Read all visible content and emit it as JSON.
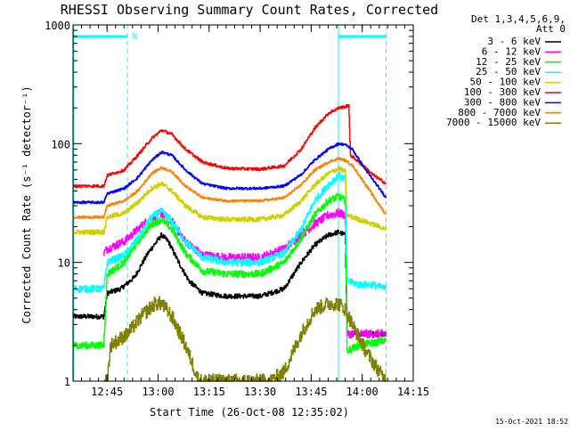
{
  "chart_data": {
    "type": "line",
    "title": "RHESSI Observing Summary Count Rates, Corrected",
    "xlabel": "Start Time (26-Oct-08 12:35:02)",
    "ylabel": "Corrected Count Rate (s⁻¹ detector⁻¹)",
    "yscale": "log",
    "ylim": [
      1,
      1000
    ],
    "xlim_minutes": [
      0,
      100
    ],
    "x_ticks": [
      {
        "label": "12:45",
        "t": 10
      },
      {
        "label": "13:00",
        "t": 25
      },
      {
        "label": "13:15",
        "t": 40
      },
      {
        "label": "13:30",
        "t": 55
      },
      {
        "label": "13:45",
        "t": 70
      },
      {
        "label": "14:00",
        "t": 85
      },
      {
        "label": "14:15",
        "t": 100
      }
    ],
    "y_ticks": [
      {
        "label": "1",
        "v": 1
      },
      {
        "label": "10",
        "v": 10
      },
      {
        "label": "100",
        "v": 100
      },
      {
        "label": "1000",
        "v": 1000
      }
    ],
    "legend_header": [
      "Det 1,3,4,5,6,9,",
      "Att 0"
    ],
    "legend_position": "top-right",
    "annotations": {
      "night_marker": "N",
      "night_bars": [
        [
          0,
          16
        ],
        [
          78,
          92
        ]
      ],
      "dashed_lines_t": [
        16,
        92
      ],
      "solid_line_t": 78
    },
    "footer_stamp": "15-Oct-2021 18:52",
    "series": [
      {
        "name": "3 - 6 keV",
        "color": "#000000",
        "amp": 0.02,
        "points": [
          [
            0,
            3.5
          ],
          [
            4,
            3.5
          ],
          [
            9,
            3.5
          ],
          [
            10,
            5.5
          ],
          [
            14,
            6
          ],
          [
            18,
            7.5
          ],
          [
            22,
            12
          ],
          [
            26,
            17
          ],
          [
            28,
            15
          ],
          [
            31,
            10
          ],
          [
            34,
            7
          ],
          [
            38,
            5.5
          ],
          [
            45,
            5.2
          ],
          [
            55,
            5.2
          ],
          [
            62,
            6
          ],
          [
            67,
            10
          ],
          [
            71,
            14
          ],
          [
            75,
            17
          ],
          [
            78,
            18
          ],
          [
            80,
            17
          ],
          [
            80.5,
            2.5
          ],
          [
            84,
            2.5
          ],
          [
            92,
            2.5
          ]
        ]
      },
      {
        "name": "6 - 12 keV",
        "color": "#ff00ff",
        "amp": 0.035,
        "points": [
          [
            9,
            12
          ],
          [
            10,
            13
          ],
          [
            15,
            15
          ],
          [
            19,
            19
          ],
          [
            23,
            24
          ],
          [
            26,
            26
          ],
          [
            29,
            22
          ],
          [
            33,
            15
          ],
          [
            38,
            11.5
          ],
          [
            45,
            11
          ],
          [
            55,
            11
          ],
          [
            62,
            13
          ],
          [
            67,
            17
          ],
          [
            71,
            21
          ],
          [
            75,
            25
          ],
          [
            78,
            26
          ],
          [
            80,
            25
          ],
          [
            80.5,
            2.5
          ],
          [
            84,
            2.5
          ],
          [
            92,
            2.5
          ]
        ]
      },
      {
        "name": "12 - 25 keV",
        "color": "#00ff00",
        "amp": 0.03,
        "points": [
          [
            0,
            2
          ],
          [
            9,
            2
          ],
          [
            10,
            8
          ],
          [
            15,
            10
          ],
          [
            19,
            15
          ],
          [
            23,
            21
          ],
          [
            26,
            23
          ],
          [
            29,
            19
          ],
          [
            33,
            12
          ],
          [
            38,
            8.5
          ],
          [
            45,
            8
          ],
          [
            55,
            8
          ],
          [
            62,
            10
          ],
          [
            67,
            16
          ],
          [
            71,
            25
          ],
          [
            75,
            33
          ],
          [
            78,
            36
          ],
          [
            80,
            33
          ],
          [
            80.5,
            1.8
          ],
          [
            84,
            2
          ],
          [
            92,
            2.2
          ]
        ]
      },
      {
        "name": "25 - 50 keV",
        "color": "#00ffff",
        "amp": 0.03,
        "points": [
          [
            0,
            6
          ],
          [
            9,
            6
          ],
          [
            10,
            10
          ],
          [
            15,
            11.5
          ],
          [
            19,
            16
          ],
          [
            23,
            24
          ],
          [
            26,
            27
          ],
          [
            29,
            22
          ],
          [
            33,
            15
          ],
          [
            38,
            11
          ],
          [
            45,
            10
          ],
          [
            55,
            10
          ],
          [
            62,
            12
          ],
          [
            67,
            19
          ],
          [
            71,
            33
          ],
          [
            75,
            45
          ],
          [
            78,
            54
          ],
          [
            80,
            50
          ],
          [
            80.5,
            7
          ],
          [
            84,
            6.5
          ],
          [
            88,
            6.5
          ],
          [
            92,
            6
          ]
        ]
      },
      {
        "name": "50 - 100 keV",
        "color": "#d0d000",
        "amp": 0.02,
        "points": [
          [
            0,
            18
          ],
          [
            9,
            18
          ],
          [
            10,
            24
          ],
          [
            15,
            26
          ],
          [
            19,
            32
          ],
          [
            23,
            42
          ],
          [
            26,
            46
          ],
          [
            29,
            40
          ],
          [
            33,
            30
          ],
          [
            38,
            24
          ],
          [
            45,
            23
          ],
          [
            55,
            23
          ],
          [
            62,
            25
          ],
          [
            67,
            33
          ],
          [
            71,
            45
          ],
          [
            75,
            56
          ],
          [
            78,
            62
          ],
          [
            80,
            58
          ],
          [
            80.5,
            25
          ],
          [
            84,
            23
          ],
          [
            88,
            21
          ],
          [
            92,
            19
          ]
        ]
      },
      {
        "name": "100 - 300 keV",
        "color": "#ff0000",
        "amp": 0.012,
        "points": [
          [
            0,
            44
          ],
          [
            9,
            44
          ],
          [
            10,
            54
          ],
          [
            15,
            60
          ],
          [
            19,
            80
          ],
          [
            23,
            110
          ],
          [
            26,
            130
          ],
          [
            29,
            120
          ],
          [
            33,
            90
          ],
          [
            38,
            70
          ],
          [
            45,
            62
          ],
          [
            55,
            61
          ],
          [
            62,
            65
          ],
          [
            67,
            90
          ],
          [
            71,
            135
          ],
          [
            75,
            180
          ],
          [
            78,
            200
          ],
          [
            80,
            205
          ],
          [
            81,
            210
          ],
          [
            81.5,
            80
          ],
          [
            84,
            70
          ],
          [
            88,
            55
          ],
          [
            92,
            46
          ]
        ]
      },
      {
        "name": "300 - 800 keV",
        "color": "#0000ff",
        "amp": 0.01,
        "points": [
          [
            0,
            32
          ],
          [
            9,
            32
          ],
          [
            10,
            38
          ],
          [
            15,
            42
          ],
          [
            19,
            52
          ],
          [
            23,
            72
          ],
          [
            26,
            85
          ],
          [
            29,
            80
          ],
          [
            33,
            60
          ],
          [
            38,
            46
          ],
          [
            45,
            42
          ],
          [
            55,
            42
          ],
          [
            62,
            44
          ],
          [
            67,
            55
          ],
          [
            71,
            73
          ],
          [
            75,
            90
          ],
          [
            78,
            100
          ],
          [
            80,
            98
          ],
          [
            82,
            90
          ],
          [
            86,
            60
          ],
          [
            92,
            35
          ]
        ]
      },
      {
        "name": "800 - 7000 keV",
        "color": "#ff8000",
        "amp": 0.01,
        "points": [
          [
            0,
            24
          ],
          [
            9,
            24
          ],
          [
            10,
            30
          ],
          [
            15,
            33
          ],
          [
            19,
            40
          ],
          [
            23,
            56
          ],
          [
            26,
            63
          ],
          [
            29,
            58
          ],
          [
            33,
            44
          ],
          [
            38,
            35
          ],
          [
            45,
            33
          ],
          [
            55,
            33
          ],
          [
            62,
            35
          ],
          [
            67,
            45
          ],
          [
            71,
            60
          ],
          [
            75,
            70
          ],
          [
            78,
            75
          ],
          [
            80,
            72
          ],
          [
            82,
            66
          ],
          [
            86,
            45
          ],
          [
            92,
            25
          ]
        ]
      },
      {
        "name": "7000 - 15000 keV",
        "color": "#808000",
        "amp": 0.06,
        "points": [
          [
            9,
            1
          ],
          [
            10,
            1
          ],
          [
            11,
            2
          ],
          [
            16,
            2.5
          ],
          [
            20,
            3.5
          ],
          [
            24,
            4.5
          ],
          [
            26,
            4.5
          ],
          [
            29,
            3.5
          ],
          [
            33,
            2
          ],
          [
            37,
            1
          ],
          [
            58,
            1
          ],
          [
            62,
            1.2
          ],
          [
            67,
            2.5
          ],
          [
            71,
            4
          ],
          [
            75,
            4.5
          ],
          [
            78,
            4.5
          ],
          [
            80,
            4
          ],
          [
            82,
            3
          ],
          [
            86,
            1.8
          ],
          [
            90,
            1.2
          ],
          [
            92,
            1
          ]
        ]
      }
    ]
  }
}
